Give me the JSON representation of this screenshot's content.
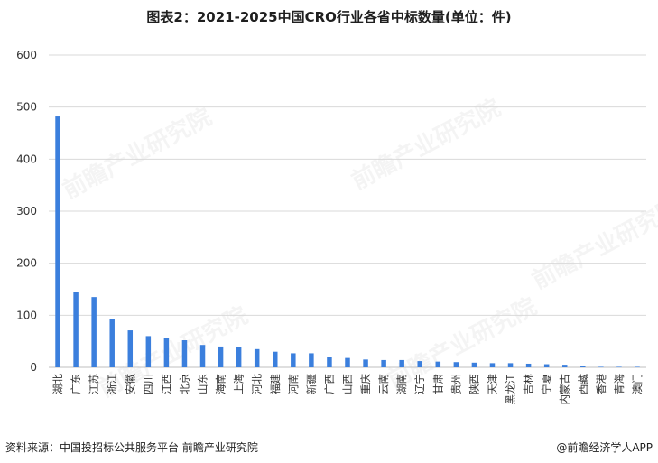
{
  "title": "图表2：2021-2025中国CRO行业各省中标数量(单位：件)",
  "source": "资料来源：中国投招标公共服务平台 前瞻产业研究院",
  "brand": "@前瞻经济学人APP",
  "watermark": "前瞻产业研究院",
  "colors": {
    "bar": "#3b7fdd",
    "grid": "#d9d9d9",
    "axis": "#bfbfbf",
    "tick": "#333333"
  },
  "chart_data": {
    "type": "bar",
    "title": "图表2：2021-2025中国CRO行业各省中标数量(单位：件)",
    "xlabel": "",
    "ylabel": "",
    "ylim": [
      0,
      600
    ],
    "yticks": [
      0,
      100,
      200,
      300,
      400,
      500,
      600
    ],
    "grid": true,
    "categories": [
      "湖北",
      "广东",
      "江苏",
      "浙江",
      "安徽",
      "四川",
      "江西",
      "北京",
      "山东",
      "海南",
      "上海",
      "河北",
      "福建",
      "河南",
      "新疆",
      "广西",
      "山西",
      "重庆",
      "云南",
      "湖南",
      "辽宁",
      "甘肃",
      "贵州",
      "陕西",
      "天津",
      "黑龙江",
      "吉林",
      "宁夏",
      "内蒙古",
      "西藏",
      "香港",
      "青海",
      "澳门"
    ],
    "values": [
      482,
      145,
      135,
      92,
      71,
      60,
      57,
      52,
      43,
      40,
      39,
      35,
      30,
      27,
      27,
      20,
      18,
      15,
      14,
      14,
      12,
      11,
      10,
      9,
      8,
      8,
      7,
      6,
      5,
      3,
      1,
      1,
      1
    ]
  }
}
